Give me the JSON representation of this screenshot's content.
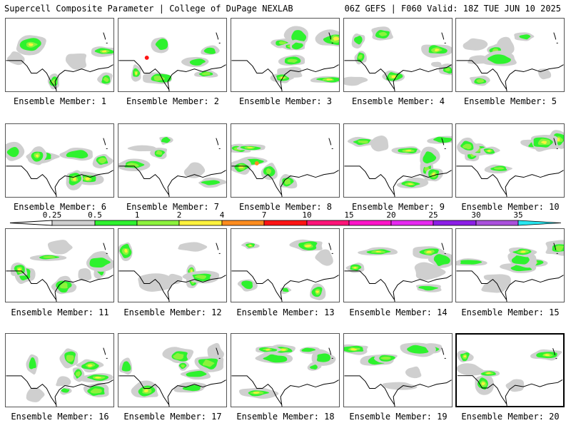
{
  "header": {
    "title": "Supercell Composite Parameter | College of DuPage NEXLAB",
    "run_info": "06Z GEFS | F060 Valid: 18Z TUE JUN 10 2025"
  },
  "colorbar": {
    "ticks": [
      "0.25",
      "0.5",
      "1",
      "2",
      "4",
      "7",
      "10",
      "15",
      "20",
      "25",
      "30",
      "35"
    ],
    "colors": [
      "#cfcfcf",
      "#2ef22e",
      "#8cf23c",
      "#fff23c",
      "#ff8c1e",
      "#ff1414",
      "#ff1478",
      "#ff14c8",
      "#e628f0",
      "#8c1ee6",
      "#aa50dc",
      "#28e6f0"
    ]
  },
  "members": [
    {
      "label": "Ensemble Member: 1"
    },
    {
      "label": "Ensemble Member: 2"
    },
    {
      "label": "Ensemble Member: 3"
    },
    {
      "label": "Ensemble Member: 4"
    },
    {
      "label": "Ensemble Member: 5"
    },
    {
      "label": "Ensemble Member: 6"
    },
    {
      "label": "Ensemble Member: 7"
    },
    {
      "label": "Ensemble Member: 8"
    },
    {
      "label": "Ensemble Member: 9"
    },
    {
      "label": "Ensemble Member: 10"
    },
    {
      "label": "Ensemble Member: 11"
    },
    {
      "label": "Ensemble Member: 12"
    },
    {
      "label": "Ensemble Member: 13"
    },
    {
      "label": "Ensemble Member: 14"
    },
    {
      "label": "Ensemble Member: 15"
    },
    {
      "label": "Ensemble Member: 16"
    },
    {
      "label": "Ensemble Member: 17"
    },
    {
      "label": "Ensemble Member: 18"
    },
    {
      "label": "Ensemble Member: 19"
    },
    {
      "label": "Ensemble Member: 20",
      "selected": true
    }
  ]
}
